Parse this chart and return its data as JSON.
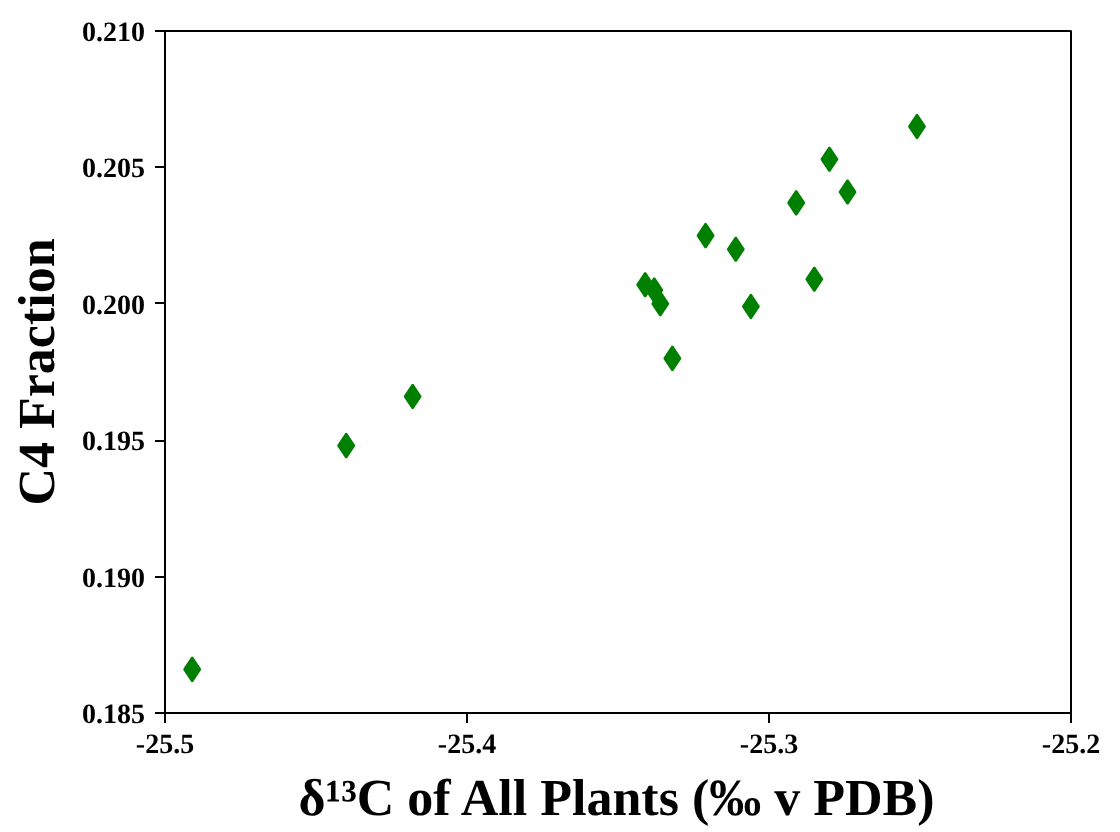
{
  "chart_data": {
    "type": "scatter",
    "xlabel": "δ¹³C of All Plants (‰ v PDB)",
    "ylabel": "C4 Fraction",
    "marker": "diamond",
    "grid": false,
    "x": [
      -25.491,
      -25.44,
      -25.418,
      -25.341,
      -25.338,
      -25.336,
      -25.332,
      -25.321,
      -25.311,
      -25.306,
      -25.291,
      -25.285,
      -25.28,
      -25.274,
      -25.251
    ],
    "series": [
      {
        "color": "#008000",
        "values": [
          0.1866,
          0.1948,
          0.1966,
          0.2007,
          0.2005,
          0.2,
          0.198,
          0.2025,
          0.202,
          0.1999,
          0.2037,
          0.2009,
          0.2053,
          0.2041,
          0.2065
        ]
      }
    ],
    "xlim": [
      -25.5,
      -25.2
    ],
    "xticks": [
      -25.5,
      -25.4,
      -25.3,
      -25.2
    ],
    "ylim": [
      0.185,
      0.21
    ],
    "yticks": [
      {
        "value": 0.185,
        "label": "0.185"
      },
      {
        "value": 0.19,
        "label": "0.190"
      },
      {
        "value": 0.195,
        "label": "0.195"
      },
      {
        "value": 0.2,
        "label": "0.200"
      },
      {
        "value": 0.205,
        "label": "0.205"
      },
      {
        "value": 0.21,
        "label": "0.210"
      }
    ]
  }
}
